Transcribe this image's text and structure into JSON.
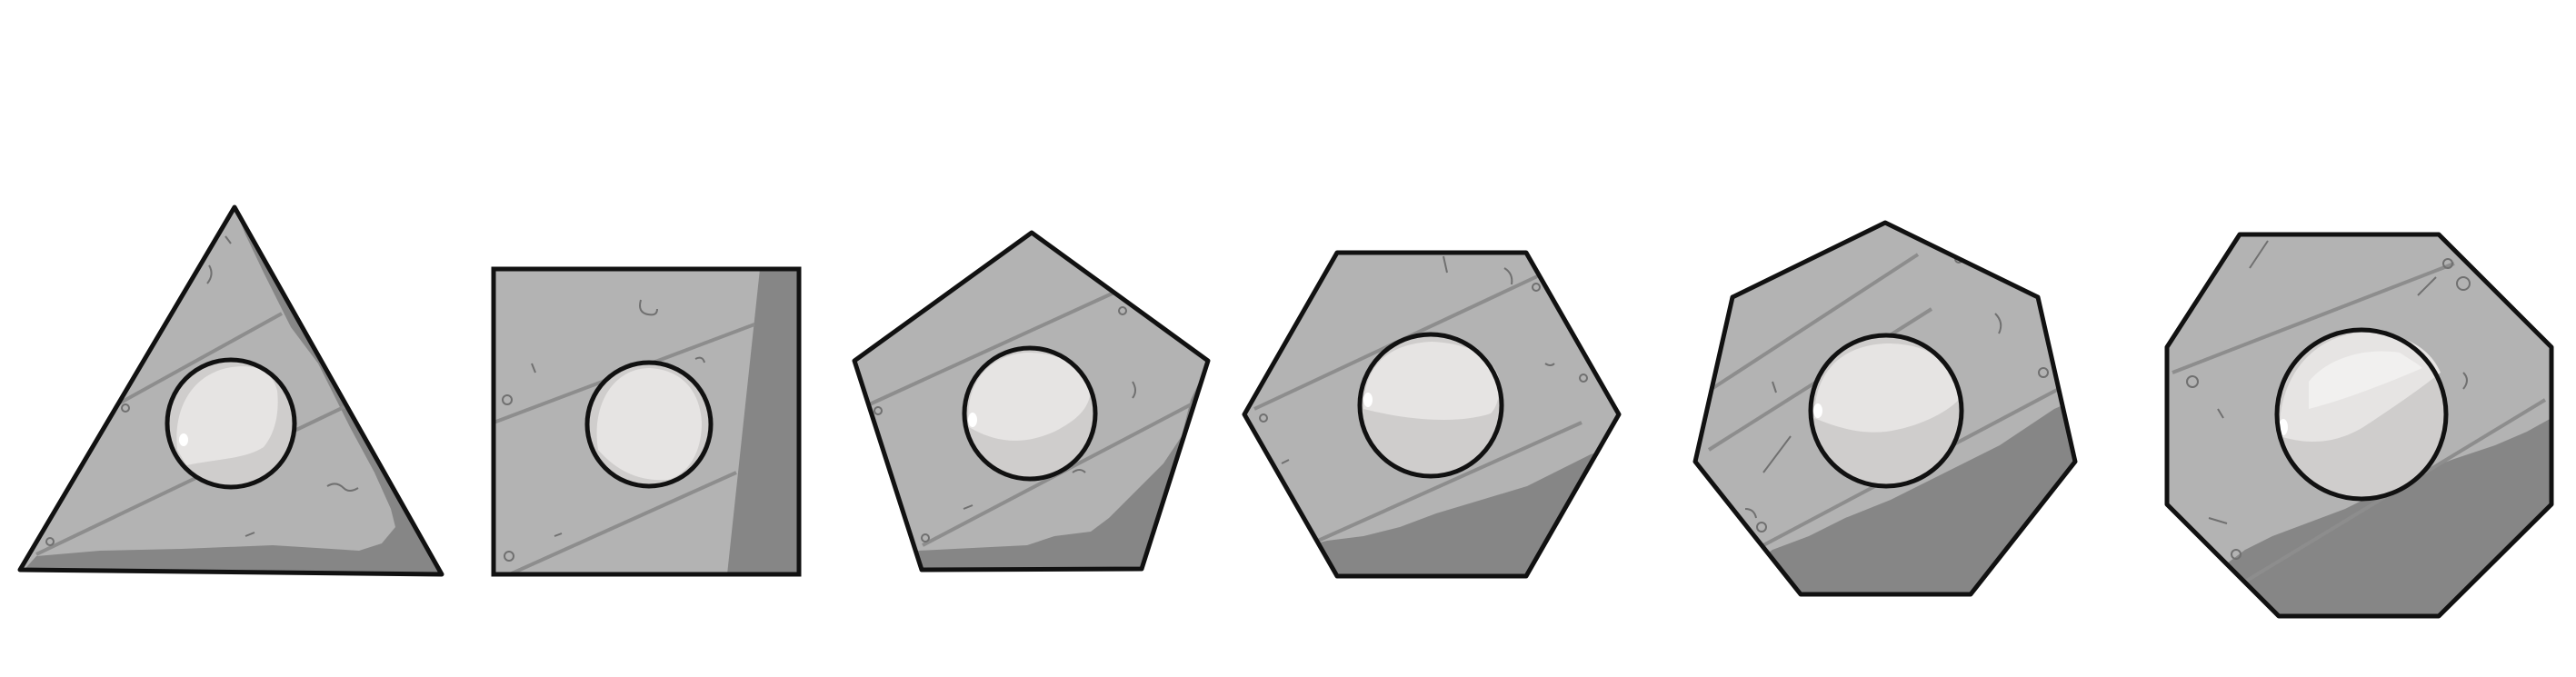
{
  "colors": {
    "background": "#ffffff",
    "plate": "#b3b3b3",
    "plate_shadow": "#868686",
    "outline": "#111111",
    "seam": "#8d8d8d",
    "scratch": "#707070",
    "gem_base": "#cfcdcc",
    "gem_highlight": "#e6e4e3",
    "gem_glint": "#ffffff"
  },
  "tiles": [
    {
      "name": "triangle-tile",
      "sides": 3
    },
    {
      "name": "square-tile",
      "sides": 4
    },
    {
      "name": "pentagon-tile",
      "sides": 5
    },
    {
      "name": "hexagon-tile",
      "sides": 6
    },
    {
      "name": "heptagon-tile",
      "sides": 7
    },
    {
      "name": "octagon-tile",
      "sides": 8
    }
  ]
}
